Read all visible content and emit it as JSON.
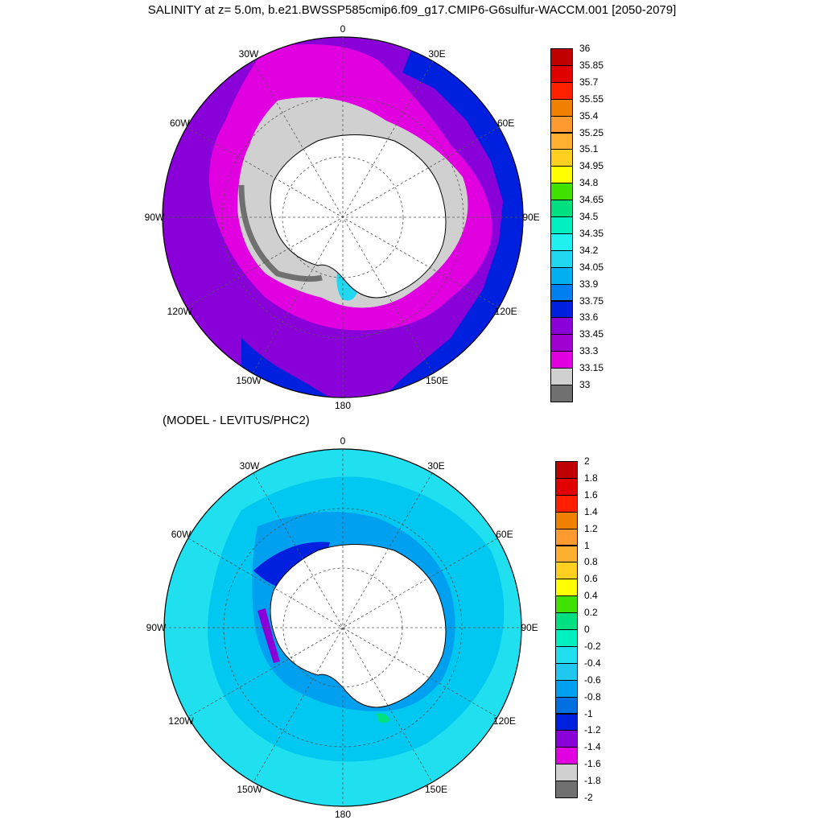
{
  "title": "SALINITY at z=   5.0m, b.e21.BWSSP585cmip6.f09_g17.CMIP6-G6sulfur-WACCM.001 [2050-2079]",
  "subtitle": "(MODEL - LEVITUS/PHC2)",
  "lon_labels": [
    "0",
    "30E",
    "60E",
    "90E",
    "120E",
    "150E",
    "180",
    "150W",
    "120W",
    "90W",
    "60W",
    "30W"
  ],
  "map_top": {
    "colorbar": {
      "labels": [
        "36",
        "35.85",
        "35.7",
        "35.55",
        "35.4",
        "35.25",
        "35.1",
        "34.95",
        "34.8",
        "34.65",
        "34.5",
        "34.35",
        "34.2",
        "34.05",
        "33.9",
        "33.75",
        "33.6",
        "33.45",
        "33.3",
        "33.15",
        "33"
      ],
      "colors": [
        "#c00000",
        "#e00000",
        "#ff2000",
        "#f08000",
        "#ff9a30",
        "#ffb030",
        "#ffd020",
        "#ffff00",
        "#40e000",
        "#00e080",
        "#00f0c0",
        "#20f0f0",
        "#20d8f0",
        "#00b0f0",
        "#0080f0",
        "#0020e0",
        "#8a00d8",
        "#a000d0",
        "#e000e0",
        "#d0d0d0",
        "#707070"
      ]
    },
    "colors": {
      "ocean_bg": "#8a00d8",
      "far_ring": "#0020e0",
      "shelf": "#d0d0d0",
      "low": "#707070",
      "magenta": "#e000e0",
      "cyan": "#20d8f0",
      "land": "#ffffff"
    }
  },
  "map_bottom": {
    "colorbar": {
      "labels": [
        "2",
        "1.8",
        "1.6",
        "1.4",
        "1.2",
        "1",
        "0.8",
        "0.6",
        "0.4",
        "0.2",
        "0",
        "-0.2",
        "-0.4",
        "-0.6",
        "-0.8",
        "-1",
        "-1.2",
        "-1.4",
        "-1.6",
        "-1.8",
        "-2"
      ],
      "colors": [
        "#c00000",
        "#e00000",
        "#ff2000",
        "#f08000",
        "#ff9a30",
        "#ffb030",
        "#ffd020",
        "#ffff00",
        "#40e000",
        "#00e080",
        "#00f0c0",
        "#20e0f0",
        "#20c8f0",
        "#00a0f0",
        "#0070e0",
        "#0020e0",
        "#8a00d8",
        "#e000e0",
        "#d0d0d0",
        "#707070"
      ]
    },
    "colors": {
      "ocean_bg": "#20e0f0",
      "mid": "#00c8f0",
      "deep": "#00a0f0",
      "dark": "#0020e0",
      "purple": "#8a00d8",
      "green": "#00e080",
      "land": "#ffffff"
    }
  }
}
